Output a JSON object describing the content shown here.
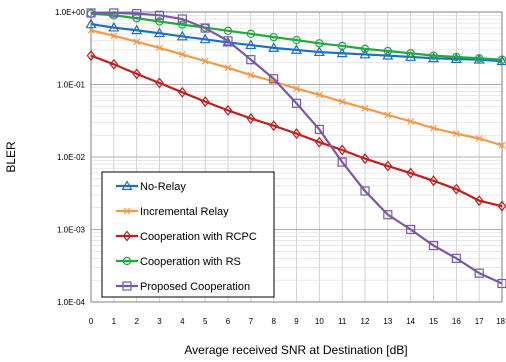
{
  "chart_data": {
    "type": "line",
    "xlabel": "Average received SNR at Destination [dB]",
    "ylabel": "BLER",
    "x": [
      0,
      1,
      2,
      3,
      4,
      5,
      6,
      7,
      8,
      9,
      10,
      11,
      12,
      13,
      14,
      15,
      16,
      17,
      18
    ],
    "x_tick_labels": [
      "0",
      "1",
      "2",
      "3",
      "4",
      "5",
      "6",
      "7",
      "8",
      "9",
      "10",
      "11",
      "12",
      "13",
      "14",
      "15",
      "16",
      "17",
      "18"
    ],
    "xlim": [
      0,
      18
    ],
    "ylim": [
      0.0001,
      1
    ],
    "y_scale": "log",
    "y_ticks": [
      1,
      0.1,
      0.01,
      0.001,
      0.0001
    ],
    "y_tick_labels": [
      "1.0E+00",
      "1.0E-01",
      "1.0E-02",
      "1.0E-03",
      "1.0E-04"
    ],
    "grid": true,
    "legend_position": "bottom-left",
    "series": [
      {
        "name": "No-Relay",
        "color": "#1f6fc0",
        "marker": "triangle",
        "values": [
          0.68,
          0.61,
          0.56,
          0.51,
          0.46,
          0.42,
          0.38,
          0.35,
          0.32,
          0.3,
          0.28,
          0.27,
          0.26,
          0.25,
          0.24,
          0.23,
          0.225,
          0.22,
          0.21
        ]
      },
      {
        "name": "Incremental Relay",
        "color": "#f39a4a",
        "marker": "x",
        "values": [
          0.56,
          0.47,
          0.39,
          0.32,
          0.26,
          0.21,
          0.17,
          0.135,
          0.11,
          0.088,
          0.072,
          0.058,
          0.047,
          0.038,
          0.031,
          0.025,
          0.021,
          0.018,
          0.0145
        ]
      },
      {
        "name": "Cooperation with RCPC",
        "color": "#c0201c",
        "marker": "diamond",
        "values": [
          0.25,
          0.19,
          0.14,
          0.105,
          0.078,
          0.058,
          0.044,
          0.034,
          0.027,
          0.021,
          0.016,
          0.0125,
          0.0095,
          0.0075,
          0.006,
          0.0047,
          0.0036,
          0.0025,
          0.0021
        ]
      },
      {
        "name": "Cooperation with RS",
        "color": "#1faa3c",
        "marker": "circle",
        "values": [
          0.95,
          0.9,
          0.82,
          0.74,
          0.67,
          0.61,
          0.55,
          0.5,
          0.45,
          0.41,
          0.37,
          0.34,
          0.31,
          0.29,
          0.27,
          0.25,
          0.24,
          0.23,
          0.22
        ]
      },
      {
        "name": "Proposed Cooperation",
        "color": "#7a58a8",
        "marker": "square",
        "values": [
          0.97,
          0.97,
          0.95,
          0.9,
          0.8,
          0.6,
          0.4,
          0.22,
          0.12,
          0.055,
          0.024,
          0.0085,
          0.0034,
          0.0016,
          0.001,
          0.0006,
          0.0004,
          0.00025,
          0.00018
        ]
      }
    ]
  }
}
